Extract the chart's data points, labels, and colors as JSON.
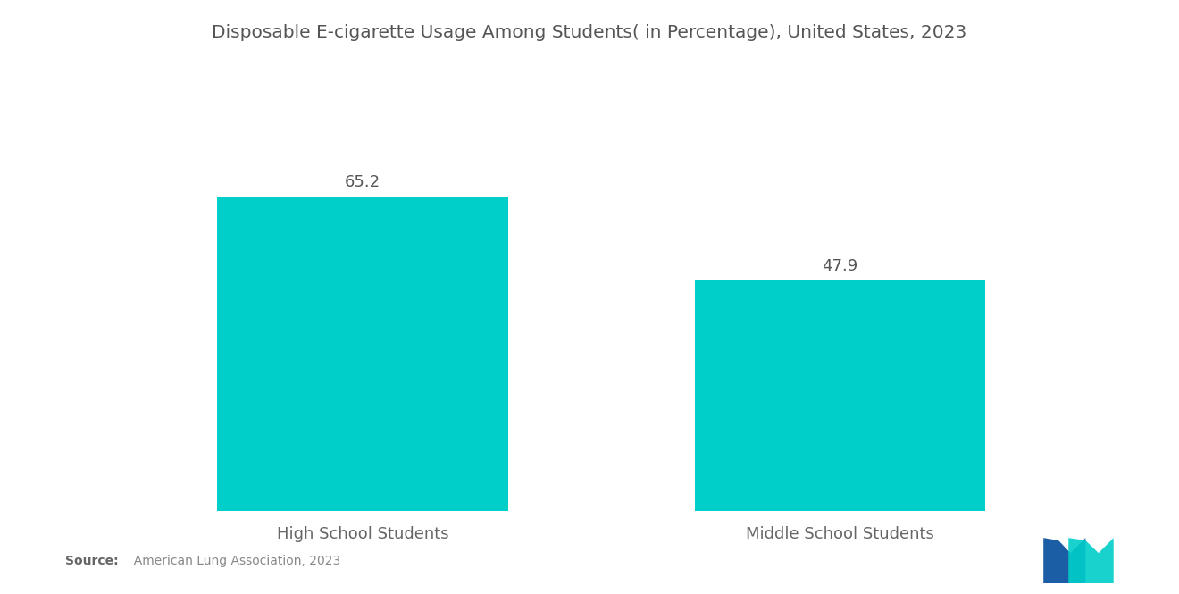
{
  "title": "Disposable E-cigarette Usage Among Students( in Percentage), United States, 2023",
  "categories": [
    "High School Students",
    "Middle School Students"
  ],
  "values": [
    65.2,
    47.9
  ],
  "bar_color": "#00CEC9",
  "background_color": "#ffffff",
  "title_fontsize": 14.5,
  "label_fontsize": 13,
  "value_fontsize": 13,
  "ylim": [
    0,
    80
  ],
  "source_bold": "Source:",
  "source_rest": "  American Lung Association, 2023",
  "logo_dark_blue": "#1B5EA6",
  "logo_teal": "#00CEC9"
}
